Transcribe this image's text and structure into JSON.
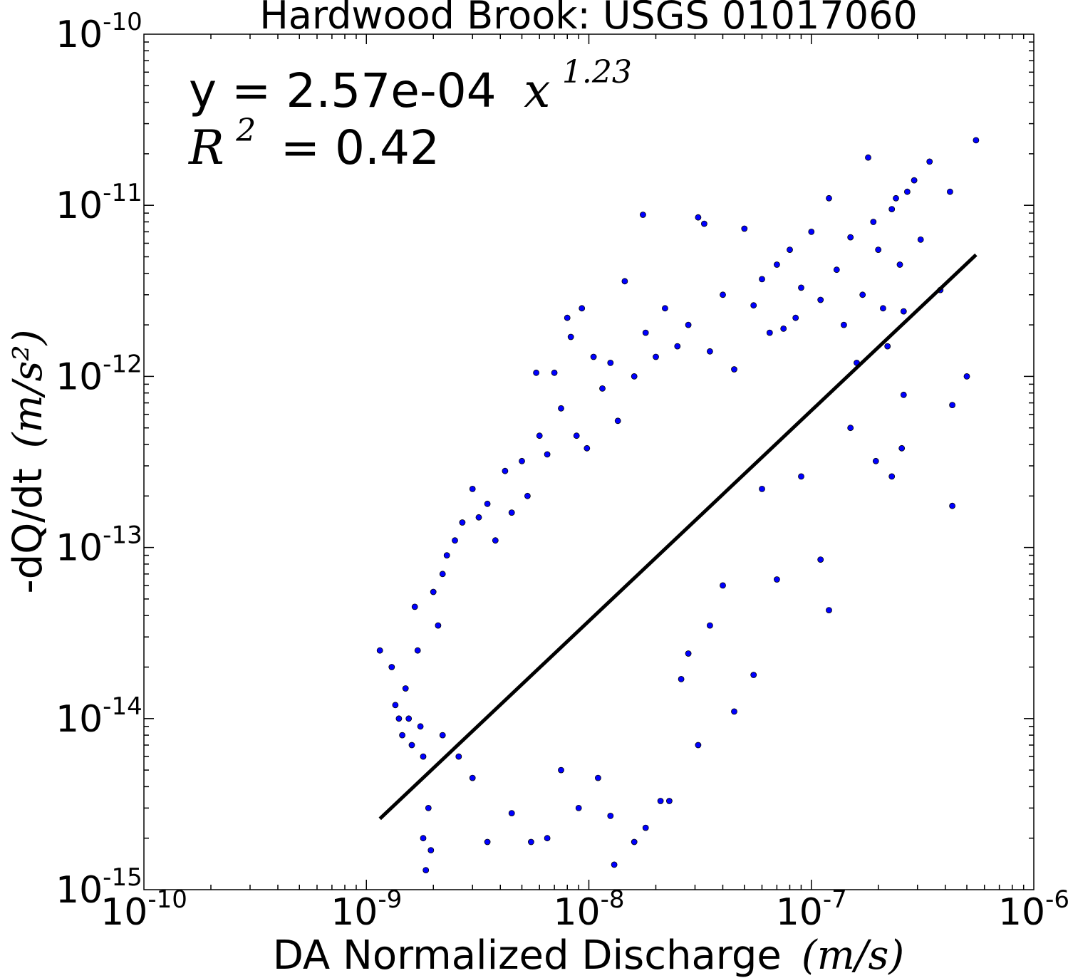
{
  "chart_data": {
    "type": "scatter",
    "title": "Hardwood Brook: USGS 01017060",
    "xlabel": "DA Normalized Discharge",
    "xlabel_unit": "(m/s)",
    "ylabel": "-dQ/dt",
    "ylabel_unit": "(m/s²)",
    "x_scale": "log",
    "y_scale": "log",
    "xlim": [
      1e-10,
      1e-06
    ],
    "ylim": [
      1e-15,
      1e-10
    ],
    "x_ticks": [
      {
        "base": "10",
        "exp": "-10",
        "value": 1e-10
      },
      {
        "base": "10",
        "exp": "-9",
        "value": 1e-09
      },
      {
        "base": "10",
        "exp": "-8",
        "value": 1e-08
      },
      {
        "base": "10",
        "exp": "-7",
        "value": 1e-07
      },
      {
        "base": "10",
        "exp": "-6",
        "value": 1e-06
      }
    ],
    "y_ticks": [
      {
        "base": "10",
        "exp": "-15",
        "value": 1e-15
      },
      {
        "base": "10",
        "exp": "-14",
        "value": 1e-14
      },
      {
        "base": "10",
        "exp": "-13",
        "value": 1e-13
      },
      {
        "base": "10",
        "exp": "-12",
        "value": 1e-12
      },
      {
        "base": "10",
        "exp": "-11",
        "value": 1e-11
      },
      {
        "base": "10",
        "exp": "-10",
        "value": 1e-10
      }
    ],
    "annotation": {
      "equation_prefix": "y = 2.57e-04",
      "equation_var": "x",
      "equation_exp": "1.23",
      "r2_var": "R",
      "r2_exp": "2",
      "r2_value": "= 0.42"
    },
    "fit_line": {
      "coefficient": 0.000257,
      "exponent": 1.23,
      "x_range": [
        1.15e-09,
        5.5e-07
      ]
    },
    "points": [
      [
        1.15e-09,
        2.5e-14
      ],
      [
        1.3e-09,
        2e-14
      ],
      [
        1.35e-09,
        1.2e-14
      ],
      [
        1.4e-09,
        1e-14
      ],
      [
        1.45e-09,
        8e-15
      ],
      [
        1.5e-09,
        1.5e-14
      ],
      [
        1.55e-09,
        1e-14
      ],
      [
        1.6e-09,
        7e-15
      ],
      [
        1.65e-09,
        4.5e-14
      ],
      [
        1.7e-09,
        2.5e-14
      ],
      [
        1.75e-09,
        9e-15
      ],
      [
        1.8e-09,
        6e-15
      ],
      [
        1.8e-09,
        2e-15
      ],
      [
        1.85e-09,
        1.3e-15
      ],
      [
        1.9e-09,
        3e-15
      ],
      [
        1.95e-09,
        1.7e-15
      ],
      [
        2e-09,
        5.5e-14
      ],
      [
        2.1e-09,
        3.5e-14
      ],
      [
        2.2e-09,
        7e-14
      ],
      [
        2.3e-09,
        9e-14
      ],
      [
        2.5e-09,
        1.1e-13
      ],
      [
        2.7e-09,
        1.4e-13
      ],
      [
        3e-09,
        2.2e-13
      ],
      [
        3.2e-09,
        1.5e-13
      ],
      [
        3.5e-09,
        1.8e-13
      ],
      [
        3.8e-09,
        1.1e-13
      ],
      [
        4.2e-09,
        2.8e-13
      ],
      [
        4.5e-09,
        1.6e-13
      ],
      [
        5e-09,
        3.2e-13
      ],
      [
        5.3e-09,
        2e-13
      ],
      [
        5.8e-09,
        1.05e-12
      ],
      [
        6e-09,
        4.5e-13
      ],
      [
        6.5e-09,
        3.5e-13
      ],
      [
        7e-09,
        1.05e-12
      ],
      [
        7.5e-09,
        6.5e-13
      ],
      [
        8e-09,
        2.2e-12
      ],
      [
        8.3e-09,
        1.7e-12
      ],
      [
        8.8e-09,
        4.5e-13
      ],
      [
        9.3e-09,
        2.5e-12
      ],
      [
        9.8e-09,
        3.8e-13
      ],
      [
        1.05e-08,
        1.3e-12
      ],
      [
        1.15e-08,
        8.5e-13
      ],
      [
        1.25e-08,
        1.2e-12
      ],
      [
        1.35e-08,
        5.5e-13
      ],
      [
        1.45e-08,
        3.6e-12
      ],
      [
        1.6e-08,
        1e-12
      ],
      [
        1.75e-08,
        8.8e-12
      ],
      [
        1.8e-08,
        1.8e-12
      ],
      [
        2e-08,
        1.3e-12
      ],
      [
        2.2e-08,
        2.5e-12
      ],
      [
        2.5e-08,
        1.5e-12
      ],
      [
        2.8e-08,
        2e-12
      ],
      [
        3.1e-08,
        8.5e-12
      ],
      [
        3.3e-08,
        7.8e-12
      ],
      [
        3.5e-08,
        1.4e-12
      ],
      [
        4e-08,
        3e-12
      ],
      [
        4.5e-08,
        1.1e-12
      ],
      [
        5e-08,
        7.3e-12
      ],
      [
        5.5e-08,
        2.6e-12
      ],
      [
        6e-08,
        3.7e-12
      ],
      [
        6.5e-08,
        1.8e-12
      ],
      [
        7e-08,
        4.5e-12
      ],
      [
        7.5e-08,
        1.9e-12
      ],
      [
        8e-08,
        5.5e-12
      ],
      [
        8.5e-08,
        2.2e-12
      ],
      [
        9e-08,
        3.3e-12
      ],
      [
        1e-07,
        7e-12
      ],
      [
        1.1e-07,
        2.8e-12
      ],
      [
        1.2e-07,
        1.1e-11
      ],
      [
        1.3e-07,
        4.2e-12
      ],
      [
        1.4e-07,
        2e-12
      ],
      [
        1.5e-07,
        6.5e-12
      ],
      [
        1.6e-07,
        1.2e-12
      ],
      [
        1.7e-07,
        3e-12
      ],
      [
        1.8e-07,
        1.9e-11
      ],
      [
        1.9e-07,
        8e-12
      ],
      [
        2e-07,
        5.5e-12
      ],
      [
        2.1e-07,
        2.5e-12
      ],
      [
        2.2e-07,
        1.5e-12
      ],
      [
        2.3e-07,
        9.5e-12
      ],
      [
        2.4e-07,
        1.1e-11
      ],
      [
        2.5e-07,
        4.5e-12
      ],
      [
        2.6e-07,
        2.4e-12
      ],
      [
        2.7e-07,
        1.2e-11
      ],
      [
        2.9e-07,
        1.4e-11
      ],
      [
        3.1e-07,
        6.3e-12
      ],
      [
        3.4e-07,
        1.8e-11
      ],
      [
        4.2e-07,
        1.2e-11
      ],
      [
        4.3e-07,
        6.8e-13
      ],
      [
        4.3e-07,
        1.75e-13
      ],
      [
        5e-07,
        1e-12
      ],
      [
        5.5e-07,
        2.4e-11
      ],
      [
        3.8e-07,
        3.2e-12
      ],
      [
        2.6e-07,
        7.8e-13
      ],
      [
        2.55e-07,
        3.8e-13
      ],
      [
        2.3e-07,
        2.6e-13
      ],
      [
        1.95e-07,
        3.2e-13
      ],
      [
        1.5e-07,
        5e-13
      ],
      [
        1.2e-07,
        4.3e-14
      ],
      [
        1.1e-07,
        8.5e-14
      ],
      [
        9e-08,
        2.6e-13
      ],
      [
        7e-08,
        6.5e-14
      ],
      [
        6e-08,
        2.2e-13
      ],
      [
        5.5e-08,
        1.8e-14
      ],
      [
        4.5e-08,
        1.1e-14
      ],
      [
        4e-08,
        6e-14
      ],
      [
        3.5e-08,
        3.5e-14
      ],
      [
        3.1e-08,
        7e-15
      ],
      [
        2.8e-08,
        2.4e-14
      ],
      [
        2.6e-08,
        1.7e-14
      ],
      [
        2.3e-08,
        3.3e-15
      ],
      [
        2.1e-08,
        3.3e-15
      ],
      [
        1.8e-08,
        2.3e-15
      ],
      [
        1.6e-08,
        1.9e-15
      ],
      [
        1.3e-08,
        1.4e-15
      ],
      [
        1.25e-08,
        2.7e-15
      ],
      [
        1.1e-08,
        4.5e-15
      ],
      [
        9e-09,
        3e-15
      ],
      [
        7.5e-09,
        5e-15
      ],
      [
        6.5e-09,
        2e-15
      ],
      [
        5.5e-09,
        1.9e-15
      ],
      [
        4.5e-09,
        2.8e-15
      ],
      [
        3.5e-09,
        1.9e-15
      ],
      [
        3e-09,
        4.5e-15
      ],
      [
        2.6e-09,
        6e-15
      ],
      [
        2.2e-09,
        8e-15
      ]
    ]
  }
}
